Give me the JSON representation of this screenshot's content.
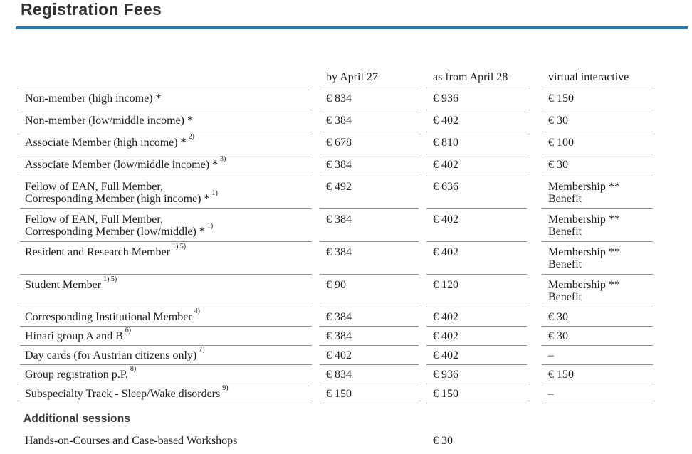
{
  "page": {
    "title": "Registration Fees"
  },
  "colors": {
    "accent_rule": "#2379b6",
    "body_text": "#1c1c1c",
    "heading_text": "#333333",
    "row_line": "#8f8f8f"
  },
  "table": {
    "headers": {
      "col1": "by April 27",
      "col2": "as from April 28",
      "col3": "virtual interactive"
    },
    "rows": [
      {
        "category": "Non-member (high income) *",
        "sup": "",
        "col1": "€ 834",
        "col2": "€ 936",
        "col3": "€ 150"
      },
      {
        "category": "Non-member (low/middle income) *",
        "sup": "",
        "col1": "€ 384",
        "col2": "€ 402",
        "col3": "€ 30"
      },
      {
        "category": "Associate Member (high income) *",
        "sup": "2)",
        "col1": "€ 678",
        "col2": "€ 810",
        "col3": "€ 100"
      },
      {
        "category": "Associate Member (low/middle income) *",
        "sup": "3)",
        "col1": "€ 384",
        "col2": "€ 402",
        "col3": "€ 30"
      },
      {
        "category": "Fellow of EAN, Full Member,\nCorresponding Member (high income) *",
        "sup": "1)",
        "col1": "€ 492",
        "col2": "€ 636",
        "col3": "Membership **\nBenefit"
      },
      {
        "category": "Fellow of EAN, Full Member,\nCorresponding Member (low/middle) *",
        "sup": "1)",
        "col1": "€ 384",
        "col2": "€ 402",
        "col3": "Membership **\nBenefit"
      },
      {
        "category": "Resident and Research Member",
        "sup": "1) 5)",
        "col1": "€ 384",
        "col2": "€ 402",
        "col3": "Membership **\nBenefit"
      },
      {
        "category": "Student Member",
        "sup": "1) 5)",
        "col1": "€ 90",
        "col2": "€ 120",
        "col3": "Membership **\nBenefit"
      },
      {
        "category": "Corresponding Institutional Member",
        "sup": "4)",
        "col1": "€ 384",
        "col2": "€ 402",
        "col3": "€ 30"
      },
      {
        "category": "Hinari group A and B",
        "sup": "6)",
        "col1": "€ 384",
        "col2": "€ 402",
        "col3": "€ 30"
      },
      {
        "category": "Day cards (for Austrian citizens only)",
        "sup": "7)",
        "col1": "€ 402",
        "col2": "€ 402",
        "col3": "–"
      },
      {
        "category": "Group registration p.P.",
        "sup": "8)",
        "col1": "€ 834",
        "col2": "€ 936",
        "col3": "€ 150"
      },
      {
        "category": "Subspecialty Track - Sleep/Wake disorders",
        "sup": "9)",
        "col1": "€ 150",
        "col2": "€ 150",
        "col3": "–"
      }
    ]
  },
  "additional": {
    "heading": "Additional sessions",
    "row_label": "Hands-on-Courses and Case-based Workshops",
    "row_value": "€ 30"
  }
}
